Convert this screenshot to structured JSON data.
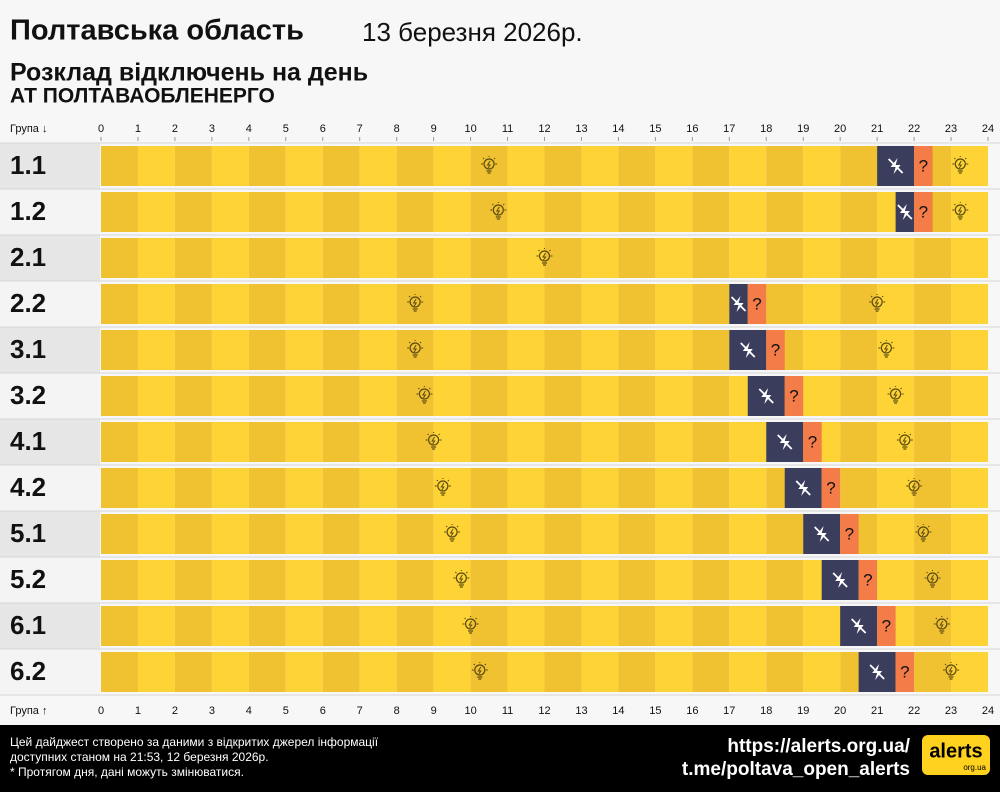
{
  "header": {
    "title": "Полтавська область",
    "date": "13 березня 2026р.",
    "subtitle": "Розклад відключень на день",
    "company": "АТ ПОЛТАВАОБЛЕНЕРГО"
  },
  "chart_data": {
    "type": "timeline",
    "y_label_top": "Група ↓",
    "y_label_bottom": "Група ↑",
    "categories": [
      "1.1",
      "1.2",
      "2.1",
      "2.2",
      "3.1",
      "3.2",
      "4.1",
      "4.2",
      "5.1",
      "5.2",
      "6.1",
      "6.2"
    ],
    "off": [
      [
        [
          21,
          22
        ]
      ],
      [
        [
          21.5,
          22
        ]
      ],
      [],
      [
        [
          17,
          17.5
        ]
      ],
      [
        [
          17,
          18
        ]
      ],
      [
        [
          17.5,
          18.5
        ]
      ],
      [
        [
          18,
          19
        ]
      ],
      [
        [
          18.5,
          19.5
        ]
      ],
      [
        [
          19,
          20
        ]
      ],
      [
        [
          19.5,
          20.5
        ]
      ],
      [
        [
          20,
          21
        ]
      ],
      [
        [
          20.5,
          21.5
        ]
      ]
    ],
    "maybe": [
      [
        [
          22,
          22.5
        ]
      ],
      [
        [
          22,
          22.5
        ]
      ],
      [],
      [
        [
          17.5,
          18
        ]
      ],
      [
        [
          18,
          18.5
        ]
      ],
      [
        [
          18.5,
          19
        ]
      ],
      [
        [
          19,
          19.5
        ]
      ],
      [
        [
          19.5,
          20
        ]
      ],
      [
        [
          20,
          20.5
        ]
      ],
      [
        [
          20.5,
          21
        ]
      ],
      [
        [
          21,
          21.5
        ]
      ],
      [
        [
          21.5,
          22
        ]
      ]
    ],
    "maybe_symbol": "?",
    "off_color": "#3b3d5c",
    "maybe_color": "#f47c48",
    "on_color": "#fdd335",
    "on_color_alt": "#f0c131",
    "xlim": [
      0,
      24
    ],
    "xticks": [
      0,
      1,
      2,
      3,
      4,
      5,
      6,
      7,
      8,
      9,
      10,
      11,
      12,
      13,
      14,
      15,
      16,
      17,
      18,
      19,
      20,
      21,
      22,
      23,
      24
    ]
  },
  "footer": {
    "lines": [
      "Цей дайджест створено за даними з відкритих джерел інформації",
      "доступних станом на 21:53, 12 березня 2026р.",
      "* Протягом дня, дані можуть змінюватися."
    ],
    "site": "https://alerts.org.ua/",
    "telegram": "t.me/poltava_open_alerts",
    "logo": "alerts",
    "logo_sub": "org.ua"
  }
}
